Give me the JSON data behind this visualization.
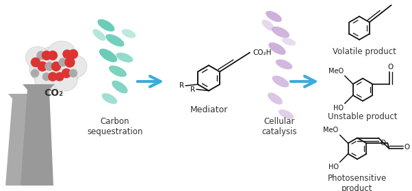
{
  "labels": {
    "co2": "CO₂",
    "carbon_seq": "Carbon\nsequestration",
    "mediator": "Mediator",
    "cellular": "Cellular\ncatalysis",
    "volatile": "Volatile product",
    "unstable": "Unstable product",
    "photosensitive": "Photosensitive\nproduct"
  },
  "colors": {
    "background": "#ffffff",
    "cloud_fill": "#e8e8e8",
    "cloud_edge": "#cccccc",
    "co2_red": "#dd3333",
    "co2_gray": "#aaaaaa",
    "factory": "#aaaaaa",
    "factory2": "#999999",
    "bacteria_teal": "#5bc8b0",
    "bacteria_purple": "#c8a8d8",
    "arrow_blue": "#3aabdb",
    "text_dark": "#333333",
    "struct_black": "#111111"
  },
  "fig_width": 6.02,
  "fig_height": 2.79,
  "dpi": 100
}
